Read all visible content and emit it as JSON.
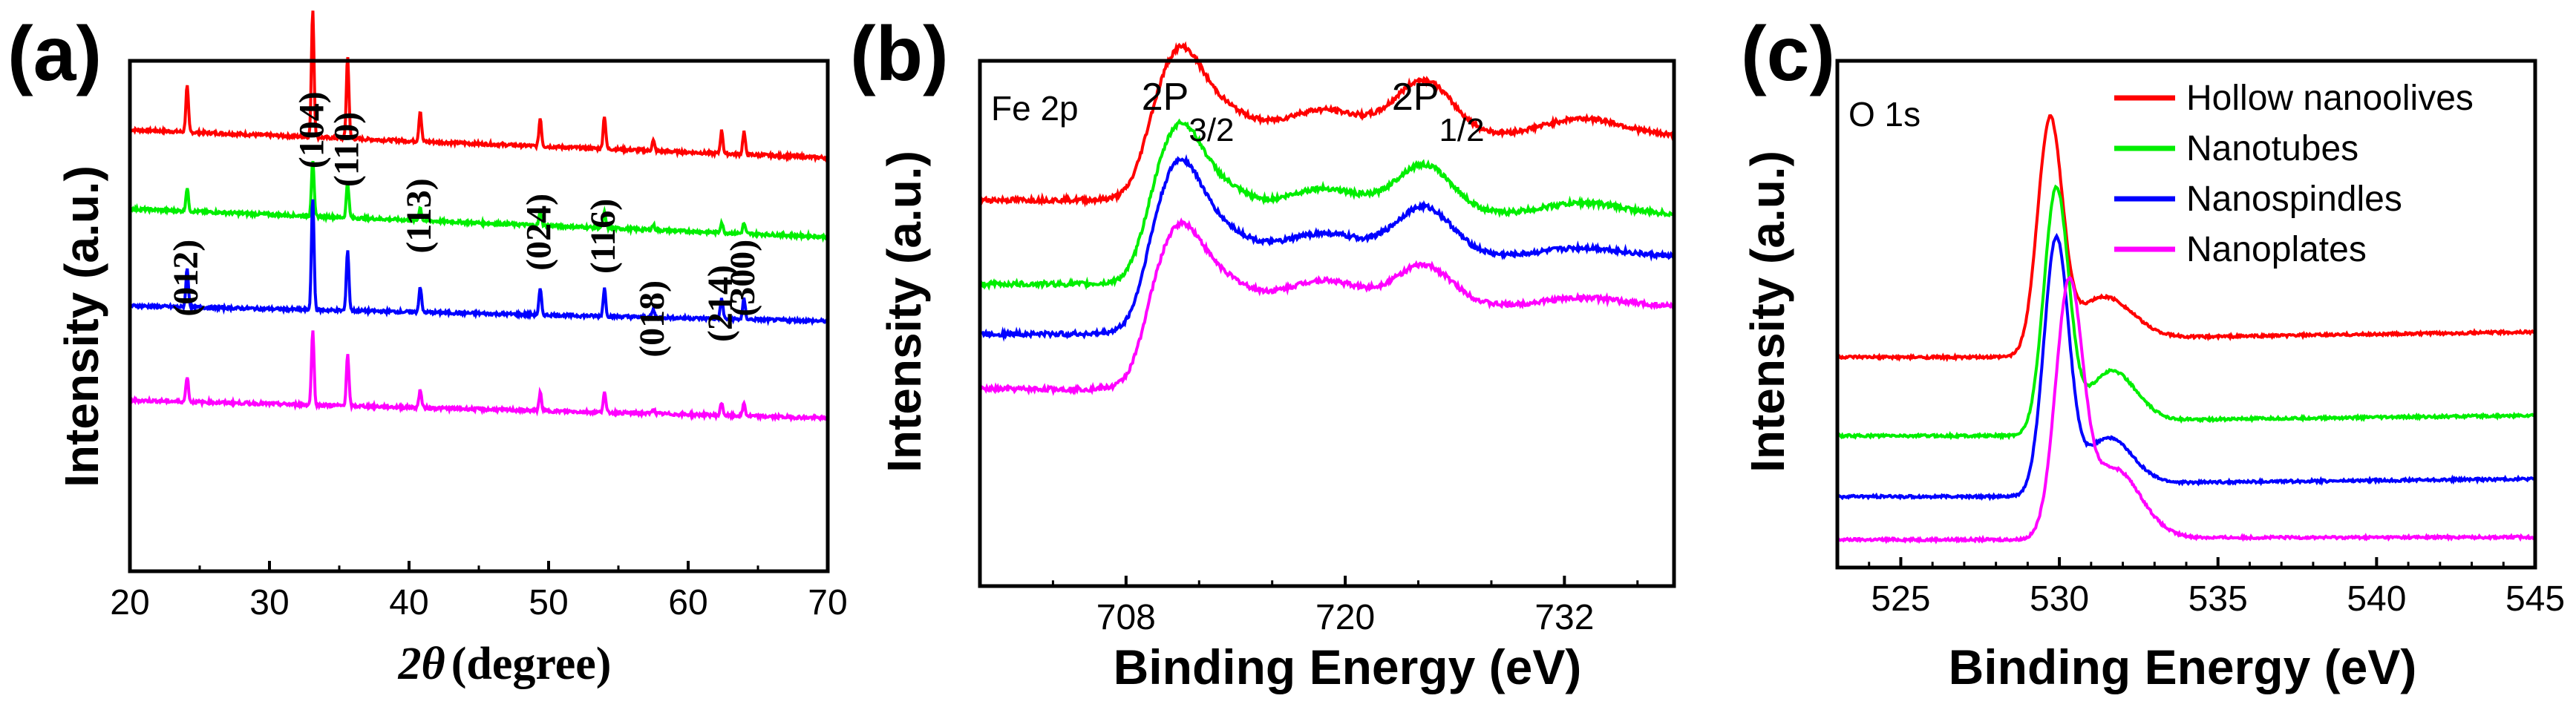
{
  "chart_data": [
    {
      "panel": "(a)",
      "type": "line",
      "xlabel": "2θ (degree)",
      "xlabel_symbol": "2θ",
      "xlabel_unit": "(degree)",
      "ylabel": "Intensity (a.u.)",
      "xlim": [
        20,
        70
      ],
      "xticks": [
        "20",
        "30",
        "40",
        "50",
        "60",
        "70"
      ],
      "peak_labels": [
        {
          "label": "(012)",
          "x": 24.1
        },
        {
          "label": "(104)",
          "x": 33.1
        },
        {
          "label": "(110)",
          "x": 35.6
        },
        {
          "label": "(113)",
          "x": 40.8
        },
        {
          "label": "(024)",
          "x": 49.4
        },
        {
          "label": "(116)",
          "x": 54.0
        },
        {
          "label": "(018)",
          "x": 57.5
        },
        {
          "label": "(214)",
          "x": 62.4
        },
        {
          "label": "(300)",
          "x": 64.0
        }
      ],
      "series": [
        {
          "name": "Hollow nanoolives",
          "color": "#ff0000",
          "baseline_start": 0.865,
          "baseline_end": 0.81,
          "peaks": [
            [
              24.1,
              0.09
            ],
            [
              33.1,
              0.25
            ],
            [
              35.6,
              0.16
            ],
            [
              40.8,
              0.06
            ],
            [
              49.4,
              0.055
            ],
            [
              54.0,
              0.065
            ],
            [
              57.5,
              0.02
            ],
            [
              62.4,
              0.045
            ],
            [
              64.0,
              0.045
            ]
          ]
        },
        {
          "name": "Nanotubes",
          "color": "#00ee00",
          "baseline_start": 0.71,
          "baseline_end": 0.655,
          "peaks": [
            [
              24.1,
              0.045
            ],
            [
              33.1,
              0.11
            ],
            [
              35.6,
              0.07
            ],
            [
              40.8,
              0.025
            ],
            [
              49.4,
              0.025
            ],
            [
              54.0,
              0.03
            ],
            [
              57.5,
              0.01
            ],
            [
              62.4,
              0.02
            ],
            [
              64.0,
              0.02
            ]
          ]
        },
        {
          "name": "Nanospindles",
          "color": "#0000ff",
          "baseline_start": 0.52,
          "baseline_end": 0.49,
          "peaks": [
            [
              24.1,
              0.075
            ],
            [
              33.1,
              0.22
            ],
            [
              35.6,
              0.12
            ],
            [
              40.8,
              0.05
            ],
            [
              49.4,
              0.05
            ],
            [
              54.0,
              0.055
            ],
            [
              57.5,
              0.015
            ],
            [
              62.4,
              0.04
            ],
            [
              64.0,
              0.04
            ]
          ]
        },
        {
          "name": "Nanoplates",
          "color": "#ff00ff",
          "baseline_start": 0.335,
          "baseline_end": 0.3,
          "peaks": [
            [
              24.1,
              0.05
            ],
            [
              33.1,
              0.145
            ],
            [
              35.6,
              0.1
            ],
            [
              40.8,
              0.035
            ],
            [
              49.4,
              0.035
            ],
            [
              54.0,
              0.04
            ],
            [
              57.5,
              0.01
            ],
            [
              62.4,
              0.025
            ],
            [
              64.0,
              0.025
            ]
          ]
        }
      ]
    },
    {
      "panel": "(b)",
      "type": "line",
      "xlabel": "Binding Energy (eV)",
      "ylabel": "Intensity (a.u.)",
      "xlim": [
        700,
        738
      ],
      "xticks": [
        "708",
        "720",
        "732"
      ],
      "region_label": "Fe 2p",
      "annotations": [
        {
          "main": "2P",
          "sub": "3/2",
          "x": 710.8
        },
        {
          "main": "2P",
          "sub": "1/2",
          "x": 724.5
        }
      ],
      "series": [
        {
          "name": "Hollow nanoolives",
          "color": "#ff0000",
          "low": 0.735,
          "high": 0.76,
          "features": [
            [
              710.8,
              0.23,
              1.6
            ],
            [
              712.5,
              0.12,
              2.5
            ],
            [
              718.8,
              0.09,
              3.0
            ],
            [
              724.3,
              0.19,
              2.2
            ],
            [
              733.0,
              0.06,
              3.0
            ]
          ]
        },
        {
          "name": "Nanotubes",
          "color": "#00ee00",
          "low": 0.575,
          "high": 0.62,
          "features": [
            [
              710.8,
              0.24,
              1.6
            ],
            [
              712.5,
              0.12,
              2.5
            ],
            [
              718.8,
              0.09,
              3.0
            ],
            [
              724.3,
              0.17,
              2.2
            ],
            [
              733.0,
              0.04,
              3.0
            ]
          ]
        },
        {
          "name": "Nanospindles",
          "color": "#0000ff",
          "low": 0.48,
          "high": 0.555,
          "features": [
            [
              710.8,
              0.26,
              1.6
            ],
            [
              712.5,
              0.12,
              2.5
            ],
            [
              718.8,
              0.08,
              3.0
            ],
            [
              724.3,
              0.17,
              2.2
            ],
            [
              733.0,
              0.03,
              3.0
            ]
          ]
        },
        {
          "name": "Nanoplates",
          "color": "#ff00ff",
          "low": 0.375,
          "high": 0.47,
          "features": [
            [
              710.8,
              0.21,
              1.6
            ],
            [
              712.5,
              0.12,
              2.5
            ],
            [
              718.8,
              0.09,
              3.0
            ],
            [
              724.3,
              0.14,
              2.2
            ],
            [
              733.0,
              0.03,
              3.0
            ]
          ]
        }
      ]
    },
    {
      "panel": "(c)",
      "type": "line",
      "xlabel": "Binding Energy (eV)",
      "ylabel": "Intensity (a.u.)",
      "xlim": [
        523,
        545
      ],
      "xticks": [
        "525",
        "530",
        "535",
        "540",
        "545"
      ],
      "region_label": "O 1s",
      "legend": [
        "Hollow nanoolives",
        "Nanotubes",
        "Nanospindles",
        "Nanoplates"
      ],
      "series": [
        {
          "name": "Hollow nanoolives",
          "color": "#ff0000",
          "base": 0.415,
          "tail": 0.465,
          "peak_x": 529.7,
          "peak_h": 0.45,
          "peak_w": 0.55,
          "shoulder_x": 531.3,
          "shoulder_h": 0.11,
          "shoulder_w": 1.3
        },
        {
          "name": "Nanotubes",
          "color": "#00ee00",
          "base": 0.26,
          "tail": 0.3,
          "peak_x": 529.9,
          "peak_h": 0.48,
          "peak_w": 0.55,
          "shoulder_x": 531.6,
          "shoulder_h": 0.12,
          "shoulder_w": 1.1
        },
        {
          "name": "Nanospindles",
          "color": "#0000ff",
          "base": 0.14,
          "tail": 0.175,
          "peak_x": 529.9,
          "peak_h": 0.5,
          "peak_w": 0.55,
          "shoulder_x": 531.5,
          "shoulder_h": 0.11,
          "shoulder_w": 1.1
        },
        {
          "name": "Nanoplates",
          "color": "#ff00ff",
          "base": 0.055,
          "tail": 0.06,
          "peak_x": 530.3,
          "peak_h": 0.48,
          "peak_w": 0.6,
          "shoulder_x": 531.7,
          "shoulder_h": 0.14,
          "shoulder_w": 1.2
        }
      ]
    }
  ]
}
